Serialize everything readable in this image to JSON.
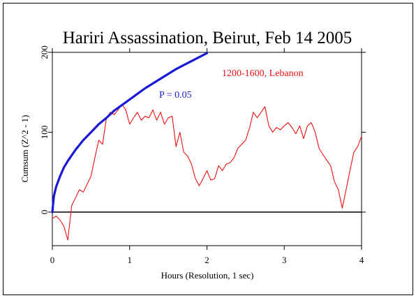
{
  "colors": {
    "frame": "#000000",
    "data_line": "#ee1111",
    "p_curve": "#1a1ad6",
    "background": "#ffffff"
  },
  "chart_data": {
    "type": "line",
    "title": "Hariri Assassination, Beirut, Feb 14 2005",
    "xlabel": "Hours (Resolution, 1 sec)",
    "ylabel": "Cumsum (Z^2 - 1)",
    "xlim": [
      0,
      4
    ],
    "ylim": [
      -42,
      200
    ],
    "x_ticks": [
      0,
      1,
      2,
      3,
      4
    ],
    "y_ticks": [
      0,
      100,
      200
    ],
    "x_tick_labels": [
      "0",
      "1",
      "2",
      "3",
      "4"
    ],
    "y_tick_labels": [
      "0",
      "100",
      "200"
    ],
    "grid": false,
    "legend": "none",
    "annotations": [
      {
        "text": "1200-1600, Lebanon",
        "color": "#ee1111"
      },
      {
        "text": "P = 0.05",
        "color": "#1a1ad6"
      }
    ],
    "series": [
      {
        "color": "#ee1111",
        "x": [
          0,
          0.05,
          0.1,
          0.15,
          0.2,
          0.25,
          0.3,
          0.35,
          0.4,
          0.45,
          0.5,
          0.55,
          0.6,
          0.65,
          0.7,
          0.75,
          0.8,
          0.85,
          0.9,
          0.95,
          1.0,
          1.05,
          1.1,
          1.15,
          1.2,
          1.25,
          1.3,
          1.35,
          1.4,
          1.45,
          1.5,
          1.55,
          1.6,
          1.65,
          1.7,
          1.75,
          1.8,
          1.85,
          1.9,
          1.95,
          2.0,
          2.05,
          2.1,
          2.15,
          2.2,
          2.25,
          2.3,
          2.35,
          2.4,
          2.45,
          2.5,
          2.55,
          2.6,
          2.65,
          2.7,
          2.75,
          2.8,
          2.85,
          2.9,
          2.95,
          3.0,
          3.05,
          3.1,
          3.15,
          3.2,
          3.25,
          3.3,
          3.35,
          3.4,
          3.45,
          3.5,
          3.55,
          3.6,
          3.65,
          3.7,
          3.75,
          3.8,
          3.85,
          3.9,
          3.95,
          4.0
        ],
        "values": [
          -8,
          -5,
          -10,
          -18,
          -35,
          8,
          18,
          28,
          25,
          35,
          45,
          68,
          90,
          85,
          118,
          125,
          122,
          128,
          135,
          128,
          110,
          118,
          125,
          115,
          120,
          118,
          128,
          115,
          125,
          110,
          118,
          120,
          82,
          100,
          75,
          70,
          60,
          42,
          33,
          42,
          52,
          40,
          42,
          58,
          52,
          60,
          62,
          68,
          80,
          85,
          90,
          105,
          125,
          118,
          125,
          132,
          108,
          100,
          106,
          103,
          108,
          112,
          106,
          98,
          108,
          92,
          108,
          112,
          100,
          80,
          72,
          65,
          58,
          38,
          28,
          5,
          28,
          52,
          75,
          82,
          95
        ]
      },
      {
        "name": "P = 0.05",
        "color": "#1a1ad6",
        "x": [
          0,
          0.02,
          0.05,
          0.1,
          0.15,
          0.2,
          0.3,
          0.4,
          0.5,
          0.6,
          0.7,
          0.8,
          0.9,
          1.0,
          1.2,
          1.4,
          1.6,
          1.8,
          2.0
        ],
        "values": [
          0,
          20,
          32,
          45,
          56,
          64,
          78,
          90,
          100,
          110,
          118,
          127,
          134,
          141,
          155,
          167,
          179,
          189,
          199
        ]
      }
    ]
  }
}
